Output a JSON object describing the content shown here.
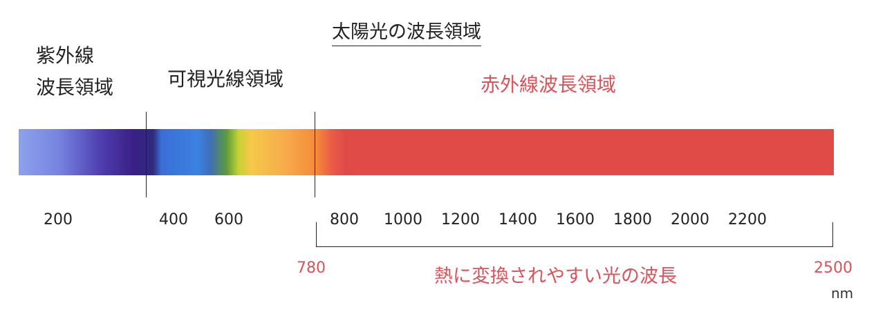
{
  "title": "太陽光の波長領域",
  "regions": {
    "uv_line1": "紫外線",
    "uv_line2": "波長領域",
    "visible": "可視光線領域",
    "infrared": "赤外線波長領域"
  },
  "ticks": [
    "200",
    "400",
    "600",
    "800",
    "1000",
    "1200",
    "1400",
    "1600",
    "1800",
    "2000",
    "2200"
  ],
  "bracket": {
    "start": "780",
    "end": "2500",
    "label": "熱に変換されやすい光の波長"
  },
  "unit": "nm",
  "colors": {
    "text": "#222222",
    "accent_red": "#d9545a",
    "infrared_band": "#e04b48"
  }
}
